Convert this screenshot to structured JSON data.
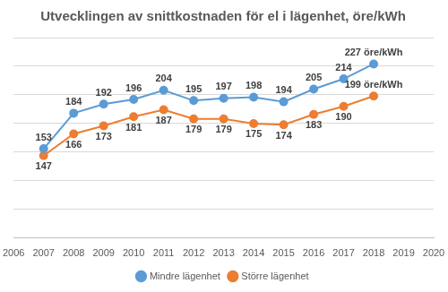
{
  "chart_data": {
    "type": "line",
    "title": "Utvecklingen av snittkostnaden för el i lägenhet, öre/kWh",
    "x": [
      2007,
      2008,
      2009,
      2010,
      2011,
      2012,
      2013,
      2014,
      2015,
      2016,
      2017,
      2018
    ],
    "series": [
      {
        "name": "Mindre lägenhet",
        "color": "#5b9bd5",
        "marker": "circle",
        "values": [
          153,
          184,
          192,
          196,
          204,
          195,
          197,
          198,
          194,
          205,
          214,
          227
        ],
        "value_labels": [
          "153",
          "184",
          "192",
          "196",
          "204",
          "195",
          "197",
          "198",
          "194",
          "205",
          "214",
          "227 öre/kWh"
        ]
      },
      {
        "name": "Större lägenhet",
        "color": "#ed7d31",
        "marker": "circle",
        "values": [
          147,
          166,
          173,
          181,
          187,
          179,
          179,
          175,
          174,
          183,
          190,
          199
        ],
        "value_labels": [
          "147",
          "166",
          "173",
          "181",
          "187",
          "179",
          "179",
          "175",
          "174",
          "183",
          "190",
          "199 öre/kWh"
        ]
      }
    ],
    "xlim": [
      2006,
      2020
    ],
    "xticks": [
      2006,
      2007,
      2008,
      2009,
      2010,
      2011,
      2012,
      2013,
      2014,
      2015,
      2016,
      2017,
      2018,
      2019,
      2020
    ],
    "ylim": [
      75,
      250
    ],
    "yticks": [
      75,
      100,
      125,
      150,
      175,
      200,
      225,
      250
    ],
    "grid": "y",
    "legend": "bottom",
    "data_labels": true,
    "tick_labels": "x"
  }
}
